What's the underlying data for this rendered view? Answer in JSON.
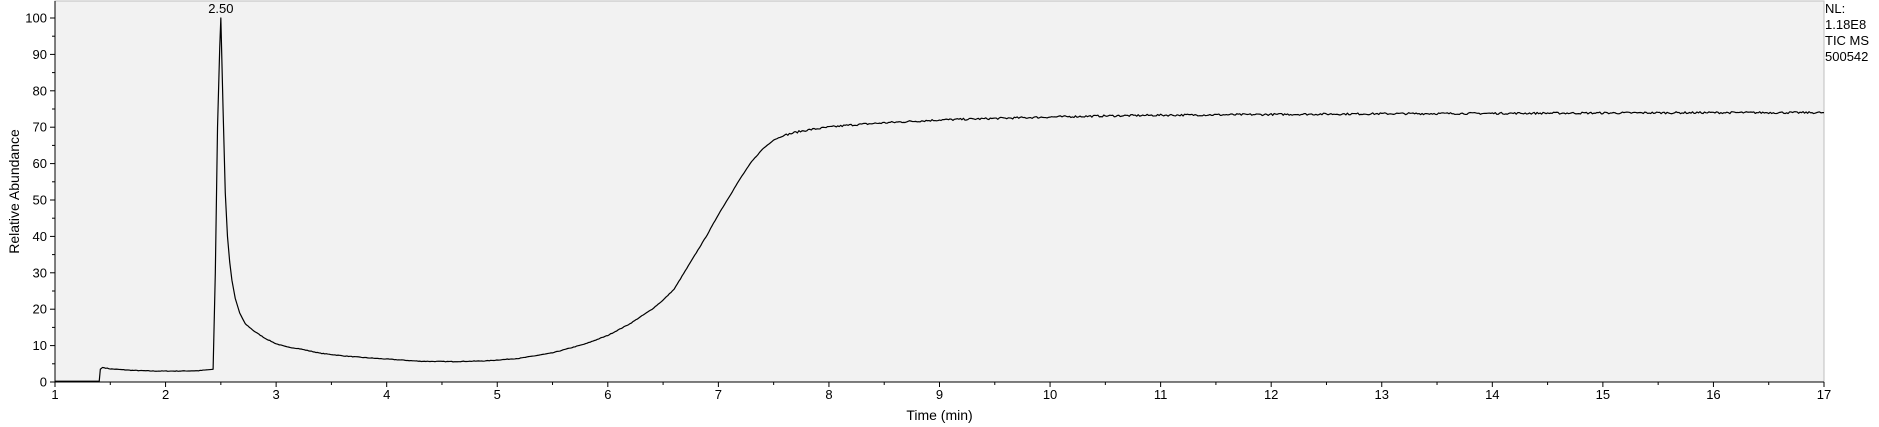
{
  "info": {
    "nl_label": "NL:",
    "nl_value": "1.18E8",
    "scan_filter": "TIC  MS",
    "file_name": "500542"
  },
  "colors": {
    "plot_background": "#f2f2f2",
    "trace": "#000000",
    "axis": "#000000"
  },
  "chart_data": {
    "type": "line",
    "title": "",
    "xlabel": "Time (min)",
    "ylabel": "Relative Abundance",
    "xlim": [
      1,
      17
    ],
    "ylim": [
      0,
      100
    ],
    "x_ticks": [
      1,
      2,
      3,
      4,
      5,
      6,
      7,
      8,
      9,
      10,
      11,
      12,
      13,
      14,
      15,
      16,
      17
    ],
    "y_ticks": [
      0,
      10,
      20,
      30,
      40,
      50,
      60,
      70,
      80,
      90,
      100
    ],
    "grid": false,
    "annotations": [
      {
        "text": "2.50",
        "x": 2.5,
        "y": 100
      }
    ],
    "series": [
      {
        "x": [
          1.0,
          1.4,
          1.41,
          1.43,
          1.5,
          1.7,
          1.9,
          2.1,
          2.3,
          2.43,
          2.45,
          2.47,
          2.49,
          2.5,
          2.52,
          2.54,
          2.56,
          2.58,
          2.6,
          2.63,
          2.67,
          2.72,
          2.8,
          2.9,
          3.0,
          3.1,
          3.2,
          3.4,
          3.6,
          3.8,
          4.0,
          4.3,
          4.6,
          4.9,
          5.2,
          5.5,
          5.8,
          6.0,
          6.2,
          6.4,
          6.5,
          6.6,
          6.7,
          6.8,
          6.9,
          7.0,
          7.1,
          7.2,
          7.3,
          7.4,
          7.5,
          7.6,
          7.7,
          7.8,
          8.0,
          8.2,
          8.5,
          9.0,
          9.5,
          10.0,
          10.5,
          11.0,
          12.0,
          13.0,
          14.0,
          15.0,
          16.0,
          17.0
        ],
        "y": [
          0.2,
          0.2,
          3.5,
          4.0,
          3.6,
          3.2,
          3.0,
          3.0,
          3.1,
          3.5,
          30,
          70,
          92,
          100,
          75,
          52,
          40,
          33,
          28,
          23,
          19,
          16,
          14,
          12,
          10.5,
          9.6,
          9.2,
          7.9,
          7.2,
          6.7,
          6.3,
          5.7,
          5.6,
          5.8,
          6.5,
          8.0,
          10.5,
          12.8,
          16.0,
          20.0,
          22.5,
          25.5,
          30.5,
          35.5,
          40.5,
          46.0,
          51.0,
          56.0,
          60.5,
          64.0,
          66.5,
          67.8,
          68.6,
          69.2,
          70.0,
          70.6,
          71.2,
          72.0,
          72.4,
          72.8,
          73.1,
          73.3,
          73.5,
          73.7,
          73.8,
          73.9,
          74.0,
          74.0
        ]
      }
    ]
  }
}
